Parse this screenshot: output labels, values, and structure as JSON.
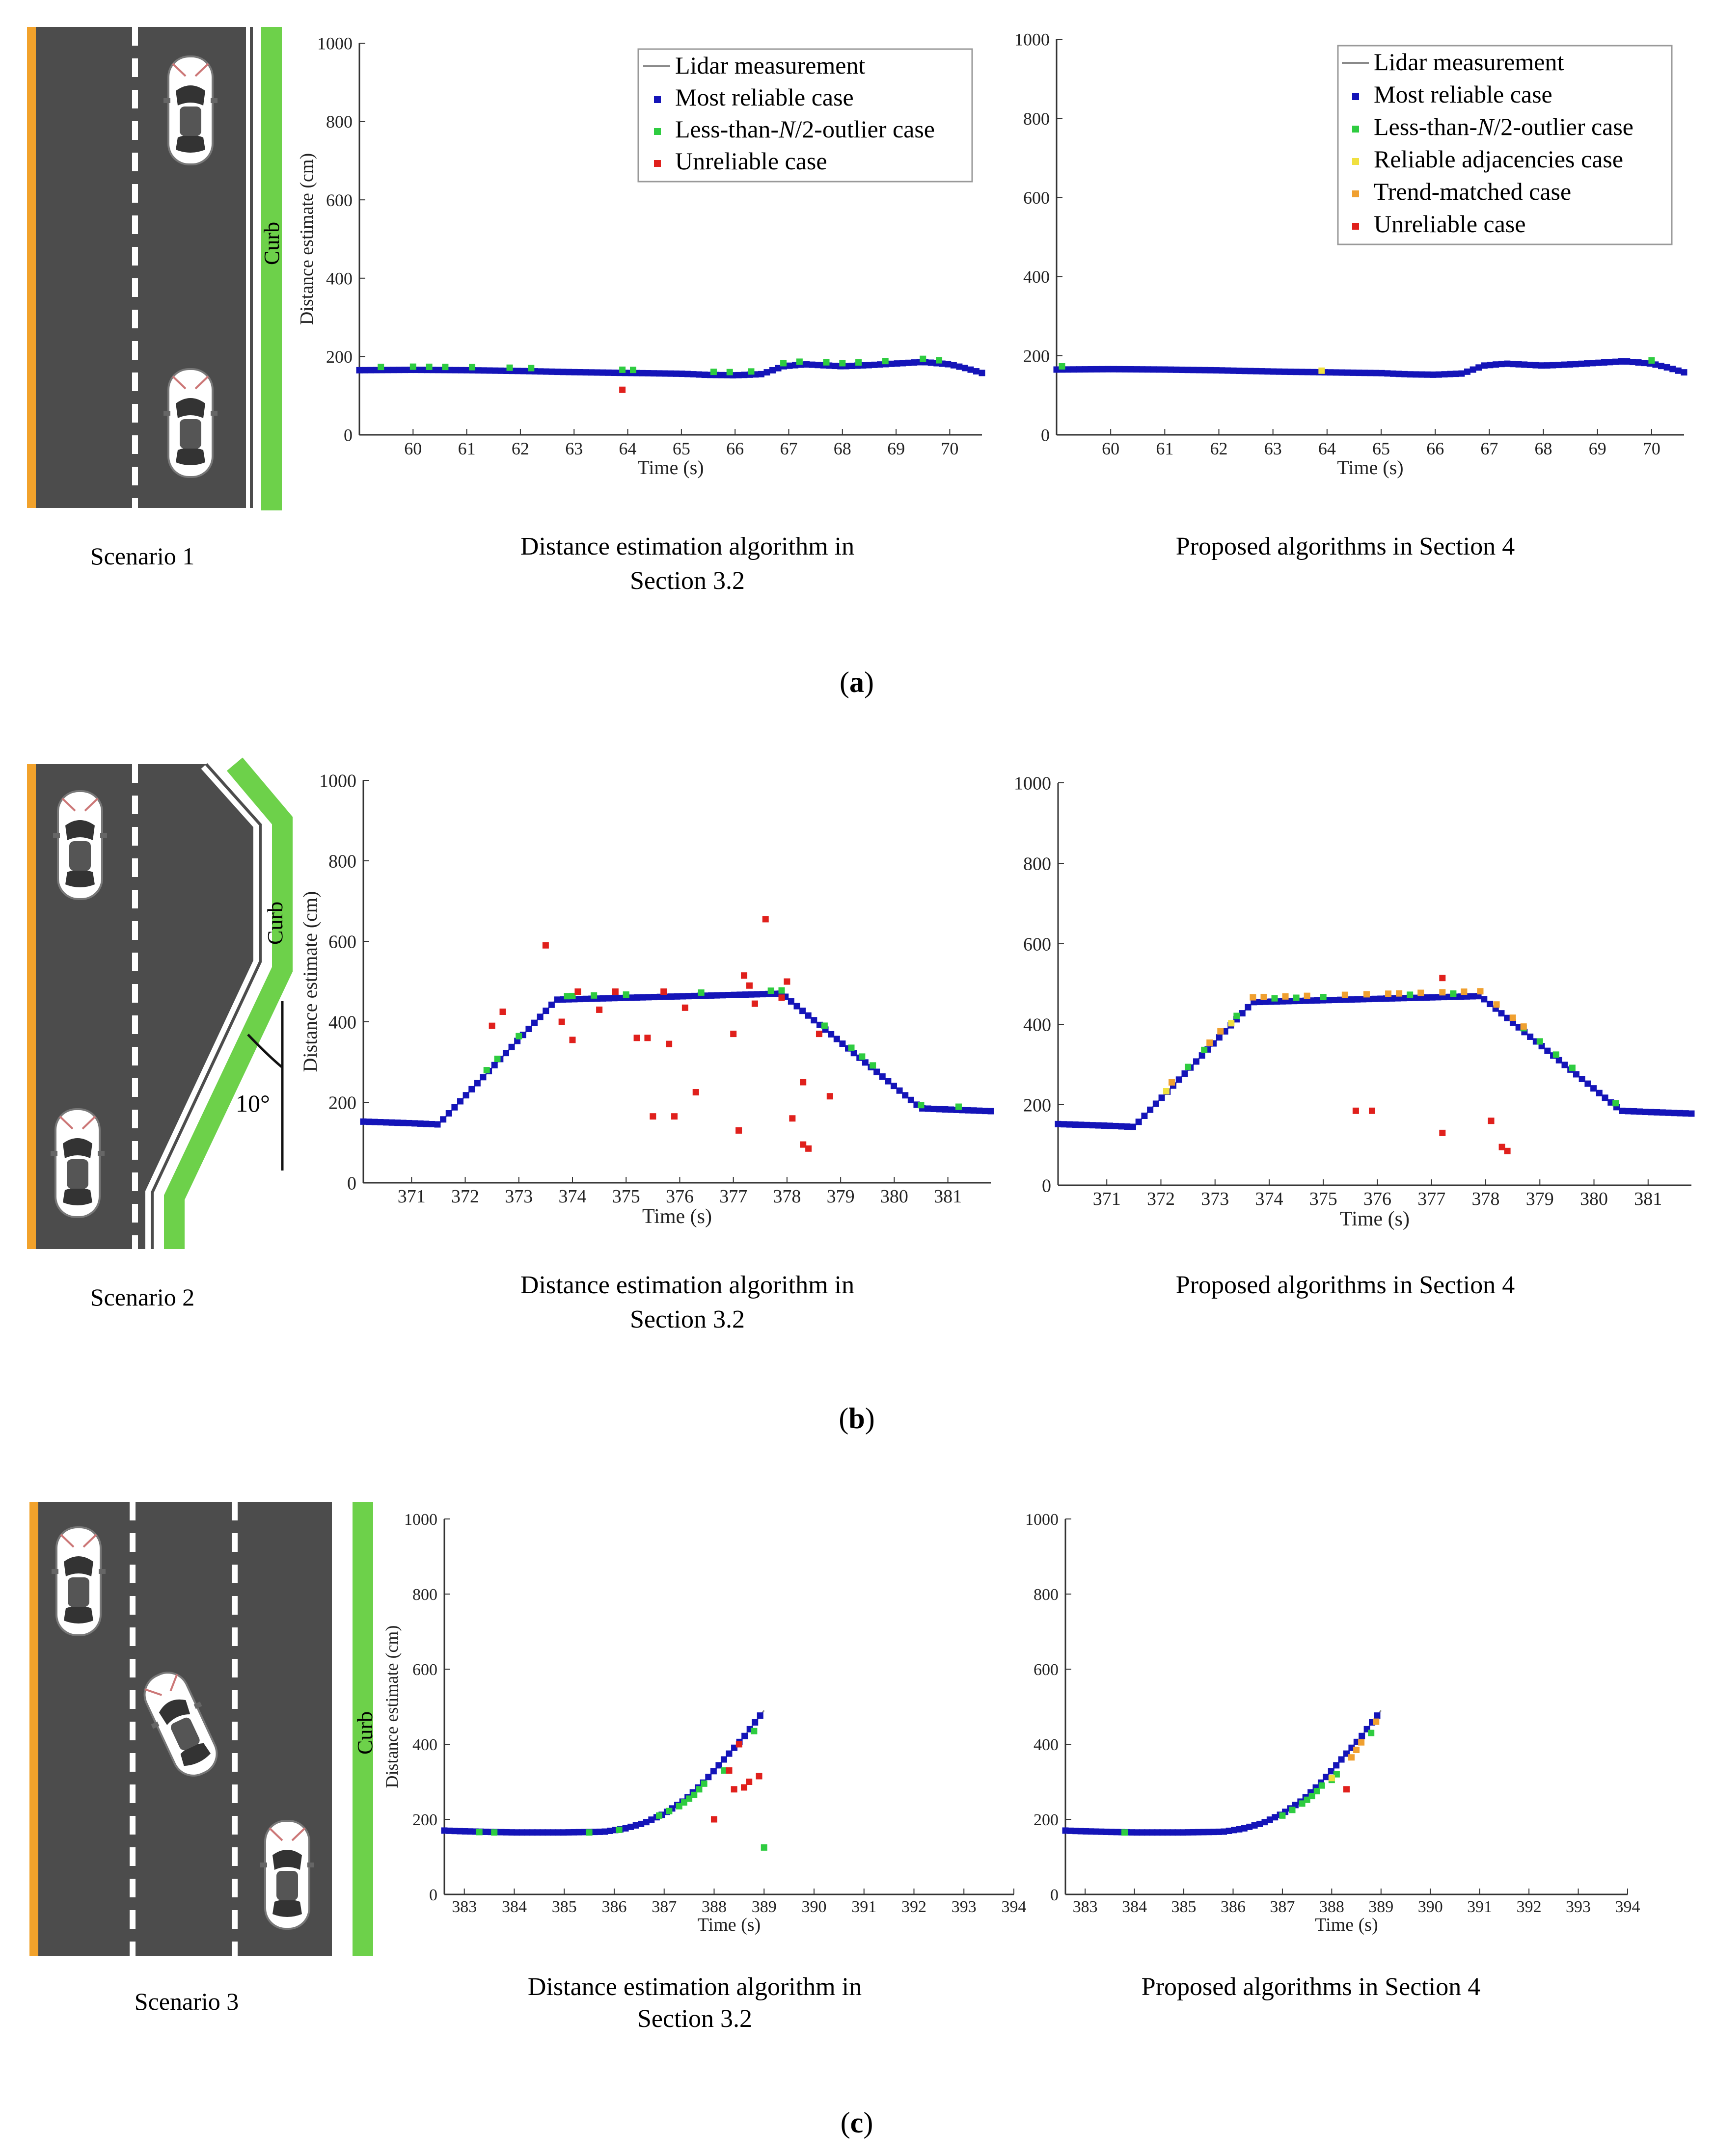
{
  "colors": {
    "road": "#4c4c4c",
    "yellow": "#f2a22b",
    "curb": "#6dd14a",
    "lidar": "#8a8a8a",
    "most_reliable": "#1414b8",
    "outlier": "#2ecc40",
    "unreliable": "#e0201c",
    "adjacency": "#f0e040",
    "trend": "#f0a030"
  },
  "figure": {
    "subfigure_labels": [
      "(a)",
      "(b)",
      "(c)"
    ],
    "subfigure_letters": [
      "a",
      "b",
      "c"
    ]
  },
  "scenarios": [
    {
      "label": "Scenario 1",
      "curb_label": "Curb"
    },
    {
      "label": "Scenario 2",
      "curb_label": "Curb",
      "angle_label": "10°"
    },
    {
      "label": "Scenario 3",
      "curb_label": "Curb"
    }
  ],
  "captions": {
    "left_line1": "Distance estimation algorithm in",
    "left_line2": "Section 3.2",
    "right": "Proposed algorithms in Section 4"
  },
  "legend_left": {
    "lidar": "Lidar measurement",
    "most": "Most reliable case",
    "outlier_pre": "Less-than-",
    "outlier_n": "N",
    "outlier_post": "/2-outlier case",
    "unreliable": "Unreliable case"
  },
  "legend_right": {
    "lidar": "Lidar measurement",
    "most": "Most reliable case",
    "outlier_pre": "Less-than-",
    "outlier_n": "N",
    "outlier_post": "/2-outlier case",
    "adjacency": "Reliable adjacencies case",
    "trend": "Trend-matched case",
    "unreliable": "Unreliable case"
  },
  "chart_data": [
    {
      "type": "scatter",
      "id": "a-left",
      "xlabel": "Time (s)",
      "ylabel": "Distance estimate (cm)",
      "xlim": [
        59,
        70.6
      ],
      "ylim": [
        0,
        1000
      ],
      "xticks": [
        60,
        61,
        62,
        63,
        64,
        65,
        66,
        67,
        68,
        69,
        70
      ],
      "yticks": [
        0,
        200,
        400,
        600,
        800,
        1000
      ],
      "lidar": {
        "x": [
          59,
          60,
          61,
          62,
          63,
          64,
          65,
          65.5,
          66,
          66.5,
          66.9,
          67.3,
          68,
          68.5,
          69,
          69.5,
          70,
          70.3,
          70.6
        ],
        "y": [
          165,
          166,
          165,
          163,
          160,
          158,
          156,
          153,
          152,
          155,
          175,
          180,
          175,
          178,
          182,
          186,
          180,
          170,
          158
        ]
      },
      "unreliable": [
        [
          63.9,
          115
        ]
      ],
      "outlier_x": [
        59.4,
        60,
        60.3,
        60.6,
        61.1,
        61.8,
        62.2,
        63.9,
        64.1,
        65.6,
        65.9,
        66.3,
        66.9,
        67.2,
        67.7,
        68,
        68.3,
        68.8,
        69.5,
        69.8
      ]
    },
    {
      "type": "scatter",
      "id": "a-right",
      "xlabel": "Time (s)",
      "ylabel": "",
      "xlim": [
        59,
        70.6
      ],
      "ylim": [
        0,
        1000
      ],
      "xticks": [
        60,
        61,
        62,
        63,
        64,
        65,
        66,
        67,
        68,
        69,
        70
      ],
      "yticks": [
        0,
        200,
        400,
        600,
        800,
        1000
      ],
      "lidar": {
        "x": [
          59,
          60,
          61,
          62,
          63,
          64,
          65,
          65.5,
          66,
          66.5,
          66.9,
          67.3,
          68,
          68.5,
          69,
          69.5,
          70,
          70.3,
          70.6
        ],
        "y": [
          165,
          166,
          165,
          163,
          160,
          158,
          156,
          153,
          152,
          155,
          175,
          180,
          175,
          178,
          182,
          186,
          180,
          170,
          158
        ]
      },
      "unreliable": [],
      "outlier_x": [
        59.1,
        70
      ],
      "adjacency_x": [
        63.9
      ]
    },
    {
      "type": "scatter",
      "id": "b-left",
      "xlabel": "Time (s)",
      "ylabel": "Distance estimate (cm)",
      "xlim": [
        370.1,
        381.8
      ],
      "ylim": [
        0,
        1000
      ],
      "xticks": [
        371,
        372,
        373,
        374,
        375,
        376,
        377,
        378,
        379,
        380,
        381
      ],
      "yticks": [
        0,
        200,
        400,
        600,
        800,
        1000
      ],
      "lidar": {
        "x": [
          370.1,
          371,
          371.5,
          373.7,
          377.9,
          380.5,
          381,
          381.8
        ],
        "y": [
          152,
          148,
          145,
          455,
          470,
          185,
          182,
          178
        ]
      },
      "unreliable": [
        [
          372.5,
          390
        ],
        [
          372.7,
          425
        ],
        [
          373.5,
          590
        ],
        [
          373.8,
          400
        ],
        [
          374,
          355
        ],
        [
          374.1,
          475
        ],
        [
          374.5,
          430
        ],
        [
          374.8,
          475
        ],
        [
          375.2,
          360
        ],
        [
          375.4,
          360
        ],
        [
          375.5,
          165
        ],
        [
          375.7,
          475
        ],
        [
          375.8,
          345
        ],
        [
          375.9,
          165
        ],
        [
          376.1,
          435
        ],
        [
          376.3,
          225
        ],
        [
          377,
          370
        ],
        [
          377.1,
          130
        ],
        [
          377.2,
          515
        ],
        [
          377.3,
          490
        ],
        [
          377.4,
          445
        ],
        [
          377.6,
          655
        ],
        [
          377.9,
          460
        ],
        [
          378,
          500
        ],
        [
          378.1,
          160
        ],
        [
          378.3,
          250
        ],
        [
          378.3,
          95
        ],
        [
          378.4,
          85
        ],
        [
          378.6,
          370
        ],
        [
          378.8,
          215
        ]
      ],
      "outlier_x": [
        372.4,
        372.6,
        373,
        373.9,
        374,
        374.4,
        375,
        376.4,
        377.7,
        377.9,
        378.7,
        379.2,
        379.4,
        379.6,
        380.5,
        381.2
      ],
      "trend_x": []
    },
    {
      "type": "scatter",
      "id": "b-right",
      "xlabel": "Time (s)",
      "ylabel": "",
      "xlim": [
        370.1,
        381.8
      ],
      "ylim": [
        0,
        1000
      ],
      "xticks": [
        371,
        372,
        373,
        374,
        375,
        376,
        377,
        378,
        379,
        380,
        381
      ],
      "yticks": [
        0,
        200,
        400,
        600,
        800,
        1000
      ],
      "lidar": {
        "x": [
          370.1,
          371,
          371.5,
          373.7,
          377.9,
          380.5,
          381,
          381.8
        ],
        "y": [
          152,
          148,
          145,
          455,
          470,
          185,
          182,
          178
        ]
      },
      "unreliable": [
        [
          375.6,
          185
        ],
        [
          375.9,
          185
        ],
        [
          377.2,
          130
        ],
        [
          377.2,
          515
        ],
        [
          378.1,
          160
        ],
        [
          378.3,
          95
        ],
        [
          378.4,
          85
        ]
      ],
      "outlier_x": [
        372.5,
        372.8,
        373.4,
        374.1,
        374.5,
        375,
        376.6,
        377.4,
        378.7,
        379,
        379.3,
        379.6,
        380.4
      ],
      "trend_x": [
        372.2,
        372.9,
        373.1,
        373.7,
        373.9,
        374.3,
        374.7,
        375.4,
        375.8,
        376.2,
        376.4,
        376.8,
        377.2,
        377.6,
        377.9,
        378.2,
        378.5,
        378.7
      ],
      "adjacency_x": [
        372.1,
        373.3
      ]
    },
    {
      "type": "scatter",
      "id": "c-left",
      "xlabel": "Time (s)",
      "ylabel": "Distance estimate (cm)",
      "xlim": [
        382.6,
        394
      ],
      "ylim": [
        0,
        1000
      ],
      "xticks": [
        383,
        384,
        385,
        386,
        387,
        388,
        389,
        390,
        391,
        392,
        393,
        394
      ],
      "yticks": [
        0,
        200,
        400,
        600,
        800,
        1000
      ],
      "lidar": {
        "x": [
          382.6,
          383,
          384,
          385,
          385.8,
          386.2,
          386.6,
          387,
          387.4,
          387.8,
          388.2,
          388.6,
          389
        ],
        "y": [
          170,
          168,
          165,
          165,
          167,
          175,
          190,
          215,
          250,
          300,
          360,
          420,
          490
        ]
      },
      "unreliable": [
        [
          388,
          200
        ],
        [
          388.3,
          330
        ],
        [
          388.4,
          280
        ],
        [
          388.5,
          400
        ],
        [
          388.6,
          285
        ],
        [
          388.7,
          300
        ],
        [
          388.9,
          315
        ]
      ],
      "outlier": [
        [
          383.3,
          166
        ],
        [
          383.6,
          165
        ],
        [
          385.5,
          165
        ],
        [
          386.1,
          172
        ],
        [
          386.9,
          210
        ],
        [
          387.1,
          222
        ],
        [
          387.3,
          235
        ],
        [
          387.4,
          245
        ],
        [
          387.5,
          255
        ],
        [
          387.6,
          265
        ],
        [
          387.7,
          280
        ],
        [
          387.8,
          295
        ],
        [
          388.2,
          330
        ],
        [
          388.8,
          435
        ],
        [
          389,
          125
        ]
      ],
      "trend": []
    },
    {
      "type": "scatter",
      "id": "c-right",
      "xlabel": "Time (s)",
      "ylabel": "",
      "xlim": [
        382.6,
        394
      ],
      "ylim": [
        0,
        1000
      ],
      "xticks": [
        383,
        384,
        385,
        386,
        387,
        388,
        389,
        390,
        391,
        392,
        393,
        394
      ],
      "yticks": [
        0,
        200,
        400,
        600,
        800,
        1000
      ],
      "lidar": {
        "x": [
          382.6,
          383,
          384,
          385,
          385.8,
          386.2,
          386.6,
          387,
          387.4,
          387.8,
          388.2,
          388.6,
          389
        ],
        "y": [
          170,
          168,
          165,
          165,
          167,
          175,
          190,
          215,
          250,
          300,
          360,
          420,
          490
        ]
      },
      "unreliable": [
        [
          388.3,
          280
        ]
      ],
      "outlier": [
        [
          383.8,
          165
        ],
        [
          387,
          210
        ],
        [
          387.2,
          225
        ],
        [
          387.4,
          242
        ],
        [
          387.5,
          252
        ],
        [
          387.6,
          262
        ],
        [
          387.7,
          275
        ],
        [
          387.8,
          290
        ],
        [
          388,
          305
        ],
        [
          388.1,
          320
        ],
        [
          388.8,
          430
        ]
      ],
      "trend": [
        [
          388.4,
          365
        ],
        [
          388.5,
          385
        ],
        [
          388.6,
          405
        ],
        [
          388.9,
          460
        ]
      ],
      "adjacency": [
        [
          388,
          310
        ]
      ]
    }
  ]
}
